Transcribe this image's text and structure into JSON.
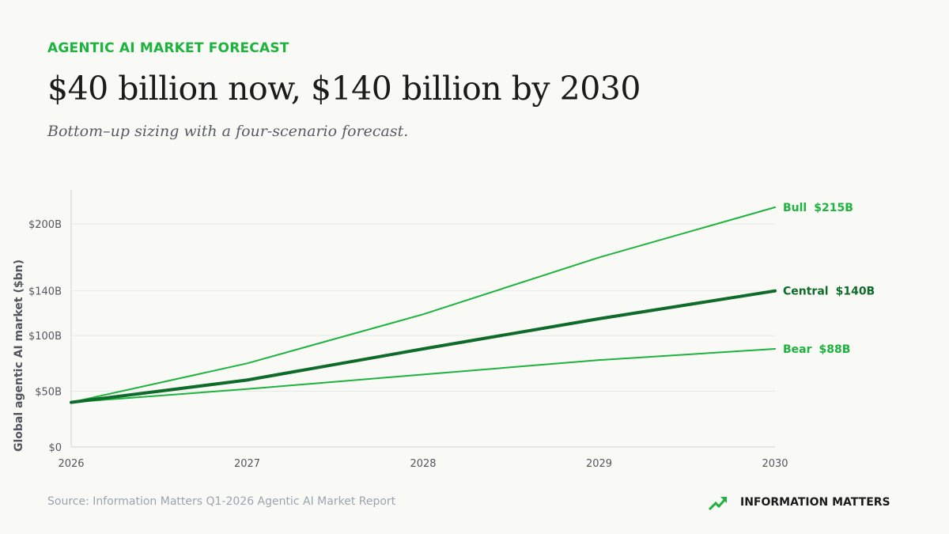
{
  "header": {
    "kicker": "AGENTIC AI MARKET FORECAST",
    "title": "$40 billion now, $140 billion by 2030",
    "subtitle": "Bottom–up sizing with a four-scenario forecast."
  },
  "footer": {
    "source": "Source: Information Matters Q1-2026 Agentic AI Market Report",
    "brand_name": "INFORMATION MATTERS",
    "brand_icon": "trend-up-icon"
  },
  "colors": {
    "background": "#f9faf6",
    "accent": "#1db33e",
    "central": "#0e6b2a",
    "axis_text": "#55555f",
    "grid": "#e6e8e3"
  },
  "chart_data": {
    "type": "line",
    "ylabel": "Global agentic AI market ($bn)",
    "xlabel": "",
    "x": [
      2026,
      2027,
      2028,
      2029,
      2030
    ],
    "x_tick_labels": [
      "2026",
      "2027",
      "2028",
      "2029",
      "2030"
    ],
    "ylim": [
      0,
      215
    ],
    "y_ticks": [
      0,
      50,
      100,
      140,
      200
    ],
    "y_tick_labels": [
      "$0",
      "$50B",
      "$100B",
      "$140B",
      "$200B"
    ],
    "grid": "horizontal",
    "legend": "end-of-line labels",
    "series": [
      {
        "name": "Bull",
        "end_label": "$215B",
        "values": [
          40,
          75,
          119,
          170,
          215
        ],
        "color": "#1db33e",
        "width": 2
      },
      {
        "name": "Central",
        "end_label": "$140B",
        "values": [
          40,
          60,
          88,
          115,
          140
        ],
        "color": "#0e6b2a",
        "width": 4
      },
      {
        "name": "Bear",
        "end_label": "$88B",
        "values": [
          40,
          52,
          65,
          78,
          88
        ],
        "color": "#1db33e",
        "width": 2
      }
    ]
  }
}
